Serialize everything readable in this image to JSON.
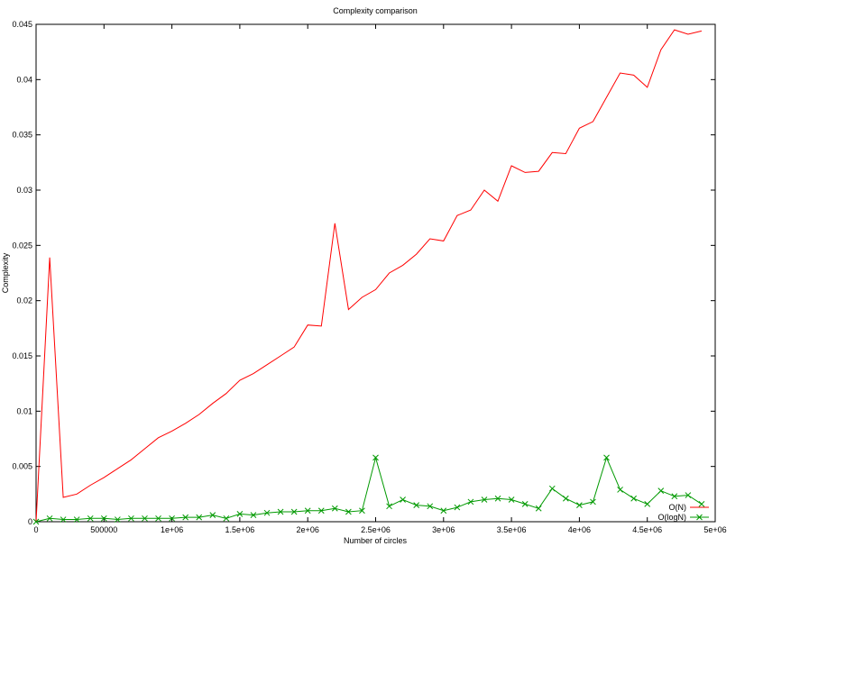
{
  "chart_data": {
    "type": "line",
    "title": "Complexity comparison",
    "xlabel": "Number of circles",
    "ylabel": "Complexity",
    "xlim": [
      0,
      5000000
    ],
    "ylim": [
      0,
      0.045
    ],
    "x_ticks": [
      0,
      500000,
      1000000,
      1500000,
      2000000,
      2500000,
      3000000,
      3500000,
      4000000,
      4500000,
      5000000
    ],
    "x_tick_labels": [
      "0",
      "500000",
      "1e+06",
      "1.5e+06",
      "2e+06",
      "2.5e+06",
      "3e+06",
      "3.5e+06",
      "4e+06",
      "4.5e+06",
      "5e+06"
    ],
    "y_ticks": [
      0,
      0.005,
      0.01,
      0.015,
      0.02,
      0.025,
      0.03,
      0.035,
      0.04,
      0.045
    ],
    "y_tick_labels": [
      "0",
      "0.005",
      "0.01",
      "0.015",
      "0.02",
      "0.025",
      "0.03",
      "0.035",
      "0.04",
      "0.045"
    ],
    "grid": false,
    "legend_position": "bottom-right",
    "x": [
      0,
      100000,
      200000,
      300000,
      400000,
      500000,
      600000,
      700000,
      800000,
      900000,
      1000000,
      1100000,
      1200000,
      1300000,
      1400000,
      1500000,
      1600000,
      1700000,
      1800000,
      1900000,
      2000000,
      2100000,
      2200000,
      2300000,
      2400000,
      2500000,
      2600000,
      2700000,
      2800000,
      2900000,
      3000000,
      3100000,
      3200000,
      3300000,
      3400000,
      3500000,
      3600000,
      3700000,
      3800000,
      3900000,
      4000000,
      4100000,
      4200000,
      4300000,
      4400000,
      4500000,
      4600000,
      4700000,
      4800000,
      4900000
    ],
    "series": [
      {
        "name": "O(N)",
        "color": "#ff0000",
        "marker": "none",
        "values": [
          0,
          0.0239,
          0.0022,
          0.0025,
          0.0033,
          0.004,
          0.0048,
          0.0056,
          0.0066,
          0.0076,
          0.0082,
          0.0089,
          0.0097,
          0.0107,
          0.0116,
          0.0128,
          0.0134,
          0.0142,
          0.015,
          0.0158,
          0.0178,
          0.0177,
          0.027,
          0.0192,
          0.0203,
          0.021,
          0.0225,
          0.0232,
          0.0242,
          0.0256,
          0.0254,
          0.0277,
          0.0282,
          0.03,
          0.029,
          0.0322,
          0.0316,
          0.0317,
          0.0334,
          0.0333,
          0.0356,
          0.0362,
          0.0384,
          0.0406,
          0.0404,
          0.0393,
          0.0427,
          0.0445,
          0.0441,
          0.0444
        ]
      },
      {
        "name": "O(logN)",
        "color": "#009900",
        "marker": "x",
        "values": [
          0,
          0.0003,
          0.0002,
          0.0002,
          0.0003,
          0.0003,
          0.0002,
          0.0003,
          0.0003,
          0.0003,
          0.0003,
          0.0004,
          0.0004,
          0.0006,
          0.0003,
          0.0007,
          0.0006,
          0.0008,
          0.0009,
          0.0009,
          0.001,
          0.001,
          0.0012,
          0.0009,
          0.001,
          0.0058,
          0.0014,
          0.002,
          0.0015,
          0.0014,
          0.001,
          0.0013,
          0.0018,
          0.002,
          0.0021,
          0.002,
          0.0016,
          0.0012,
          0.003,
          0.0021,
          0.0015,
          0.0018,
          0.0058,
          0.0029,
          0.0021,
          0.0016,
          0.0028,
          0.0023,
          0.0024,
          0.0016
        ]
      }
    ]
  }
}
